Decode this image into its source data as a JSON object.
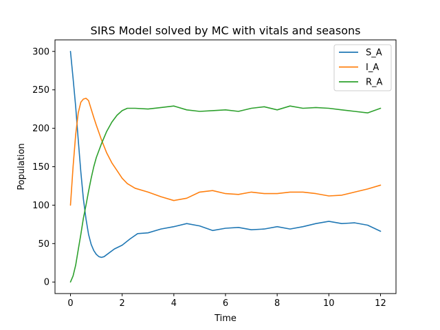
{
  "chart_data": {
    "type": "line",
    "title": "SIRS Model solved by MC with vitals and seasons",
    "xlabel": "Time",
    "ylabel": "Population",
    "xlim": [
      -0.6,
      12.6
    ],
    "ylim": [
      -15,
      315
    ],
    "xticks": [
      0,
      2,
      4,
      6,
      8,
      10,
      12
    ],
    "yticks": [
      0,
      50,
      100,
      150,
      200,
      250,
      300
    ],
    "grid": false,
    "legend_position": "top-right",
    "series": [
      {
        "name": "S_A",
        "color": "#1f77b4",
        "x": [
          0,
          0.1,
          0.2,
          0.3,
          0.4,
          0.5,
          0.6,
          0.7,
          0.8,
          0.9,
          1.0,
          1.1,
          1.2,
          1.3,
          1.5,
          1.7,
          2.0,
          2.3,
          2.6,
          3.0,
          3.5,
          4.0,
          4.5,
          5.0,
          5.5,
          6.0,
          6.5,
          7.0,
          7.5,
          8.0,
          8.5,
          9.0,
          9.5,
          10.0,
          10.5,
          11.0,
          11.5,
          12.0
        ],
        "y": [
          300,
          265,
          228,
          185,
          143,
          108,
          82,
          62,
          49,
          41,
          36,
          33,
          32,
          33,
          38,
          43,
          48,
          56,
          63,
          64,
          69,
          72,
          76,
          73,
          67,
          70,
          71,
          68,
          69,
          72,
          69,
          72,
          76,
          79,
          76,
          77,
          74,
          66
        ]
      },
      {
        "name": "I_A",
        "color": "#ff7f0e",
        "x": [
          0,
          0.1,
          0.2,
          0.3,
          0.4,
          0.5,
          0.6,
          0.7,
          0.8,
          0.9,
          1.0,
          1.2,
          1.4,
          1.6,
          1.8,
          2.0,
          2.2,
          2.5,
          3.0,
          3.5,
          4.0,
          4.5,
          5.0,
          5.5,
          6.0,
          6.5,
          7.0,
          7.5,
          8.0,
          8.5,
          9.0,
          9.5,
          10.0,
          10.5,
          11.0,
          11.5,
          12.0
        ],
        "y": [
          100,
          150,
          192,
          220,
          234,
          238,
          239,
          236,
          225,
          214,
          204,
          185,
          168,
          155,
          145,
          135,
          128,
          122,
          117,
          111,
          106,
          109,
          117,
          119,
          115,
          114,
          117,
          115,
          115,
          117,
          117,
          115,
          112,
          113,
          117,
          121,
          126
        ]
      },
      {
        "name": "R_A",
        "color": "#2ca02c",
        "x": [
          0,
          0.1,
          0.2,
          0.3,
          0.4,
          0.5,
          0.6,
          0.7,
          0.8,
          0.9,
          1.0,
          1.2,
          1.4,
          1.6,
          1.8,
          2.0,
          2.2,
          2.5,
          3.0,
          3.5,
          4.0,
          4.5,
          5.0,
          5.5,
          6.0,
          6.5,
          7.0,
          7.5,
          8.0,
          8.5,
          9.0,
          9.5,
          10.0,
          10.5,
          11.0,
          11.5,
          12.0
        ],
        "y": [
          0,
          8,
          22,
          42,
          62,
          83,
          100,
          118,
          135,
          150,
          162,
          180,
          196,
          208,
          217,
          223,
          226,
          226,
          225,
          227,
          229,
          224,
          222,
          223,
          224,
          222,
          226,
          228,
          224,
          229,
          226,
          227,
          226,
          224,
          222,
          220,
          226
        ]
      }
    ]
  }
}
